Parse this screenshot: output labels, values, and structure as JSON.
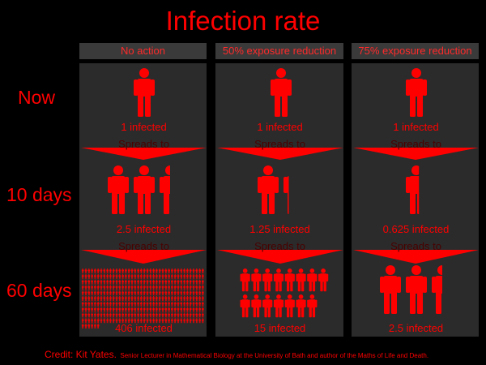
{
  "title": "Infection rate",
  "columns": [
    {
      "label": "No action",
      "counts": [
        "1 infected",
        "2.5 infected",
        "406 infected"
      ]
    },
    {
      "label": "50% exposure reduction",
      "counts": [
        "1 infected",
        "1.25 infected",
        "15 infected"
      ]
    },
    {
      "label": "75% exposure reduction",
      "counts": [
        "1 infected",
        "0.625 infected",
        "2.5 infected"
      ]
    }
  ],
  "rows": [
    "Now",
    "10 days",
    "60 days"
  ],
  "arrow_label": "Spreads to",
  "credit": {
    "name": "Credit: Kit Yates.",
    "detail": "Senior Lecturer in Mathematical Biology at the University of Bath and author of the Maths of Life and Death."
  },
  "icons": {
    "name": "person-icon",
    "color": "#ff0000",
    "values": [
      [
        1,
        2.5,
        406
      ],
      [
        1,
        1.25,
        15
      ],
      [
        1,
        0.625,
        2.5
      ]
    ]
  }
}
